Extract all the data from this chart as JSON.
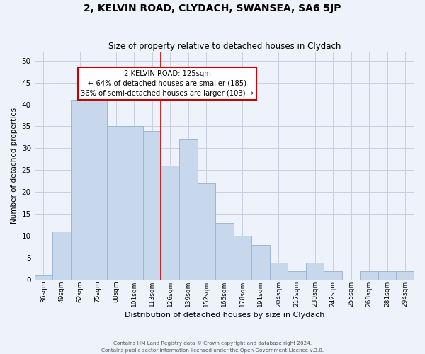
{
  "title": "2, KELVIN ROAD, CLYDACH, SWANSEA, SA6 5JP",
  "subtitle": "Size of property relative to detached houses in Clydach",
  "xlabel": "Distribution of detached houses by size in Clydach",
  "ylabel": "Number of detached properties",
  "bar_labels": [
    "36sqm",
    "49sqm",
    "62sqm",
    "75sqm",
    "88sqm",
    "101sqm",
    "113sqm",
    "126sqm",
    "139sqm",
    "152sqm",
    "165sqm",
    "178sqm",
    "191sqm",
    "204sqm",
    "217sqm",
    "230sqm",
    "242sqm",
    "255sqm",
    "268sqm",
    "281sqm",
    "294sqm"
  ],
  "bar_values": [
    1,
    11,
    41,
    41,
    35,
    35,
    34,
    26,
    32,
    22,
    13,
    10,
    8,
    4,
    2,
    4,
    2,
    0,
    2,
    2,
    2
  ],
  "bar_color": "#c8d8ec",
  "bar_edgecolor": "#9ab8d4",
  "reference_line_x_label": "126sqm",
  "reference_line_color": "#cc0000",
  "annotation_title": "2 KELVIN ROAD: 125sqm",
  "annotation_line1": "← 64% of detached houses are smaller (185)",
  "annotation_line2": "36% of semi-detached houses are larger (103) →",
  "annotation_box_edgecolor": "#cc0000",
  "ylim": [
    0,
    52
  ],
  "yticks": [
    0,
    5,
    10,
    15,
    20,
    25,
    30,
    35,
    40,
    45,
    50
  ],
  "grid_color": "#c8d0e0",
  "footer_line1": "Contains HM Land Registry data © Crown copyright and database right 2024.",
  "footer_line2": "Contains public sector information licensed under the Open Government Licence v.3.0.",
  "bg_color": "#eef2fa"
}
